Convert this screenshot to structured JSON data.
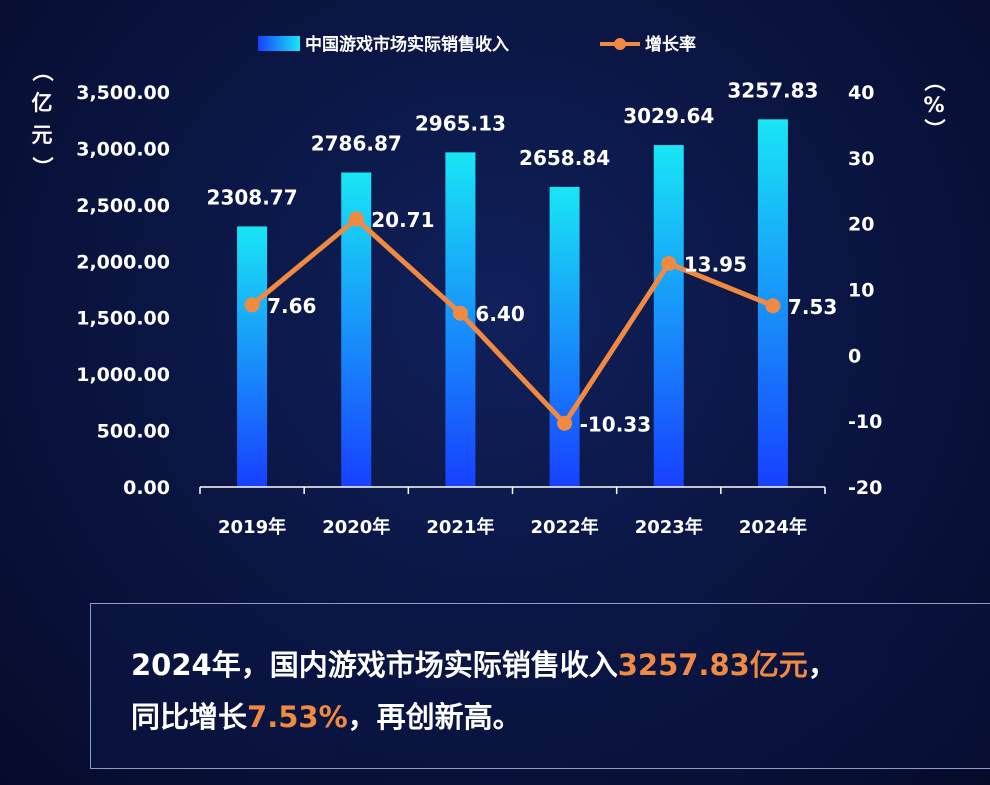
{
  "chart_data": {
    "type": "bar+line",
    "title": "",
    "categories": [
      "2019年",
      "2020年",
      "2021年",
      "2022年",
      "2023年",
      "2024年"
    ],
    "series": [
      {
        "name": "中国游戏市场实际销售收入",
        "type": "bar",
        "axis": "left",
        "values": [
          2308.77,
          2786.87,
          2965.13,
          2658.84,
          3029.64,
          3257.83
        ],
        "labels": [
          "2308.77",
          "2786.87",
          "2965.13",
          "2658.84",
          "3029.64",
          "3257.83"
        ],
        "color_top": "#19e6f5",
        "color_bottom": "#1740ff"
      },
      {
        "name": "增长率",
        "type": "line",
        "axis": "right",
        "values": [
          7.66,
          20.71,
          6.4,
          -10.33,
          13.95,
          7.53
        ],
        "labels": [
          "7.66",
          "20.71",
          "6.40",
          "-10.33",
          "13.95",
          "7.53"
        ],
        "color": "#f08a43"
      }
    ],
    "y_left": {
      "label": "（亿元）",
      "ylim": [
        0,
        3500
      ],
      "ticks": [
        "0.00",
        "500.00",
        "1,000.00",
        "1,500.00",
        "2,000.00",
        "2,500.00",
        "3,000.00",
        "3,500.00"
      ]
    },
    "y_right": {
      "label": "（%）",
      "ylim": [
        -20,
        40
      ],
      "ticks": [
        "-20",
        "-10",
        "0",
        "10",
        "20",
        "30",
        "40"
      ]
    },
    "legend_position": "top-center",
    "grid": false
  },
  "summary": {
    "line1_prefix": "2024年，国内游戏市场实际销售收入",
    "line1_highlight": "3257.83亿元",
    "line1_suffix": "，",
    "line2_prefix": "同比增长",
    "line2_highlight": "7.53%",
    "line2_suffix": "，再创新高。"
  }
}
